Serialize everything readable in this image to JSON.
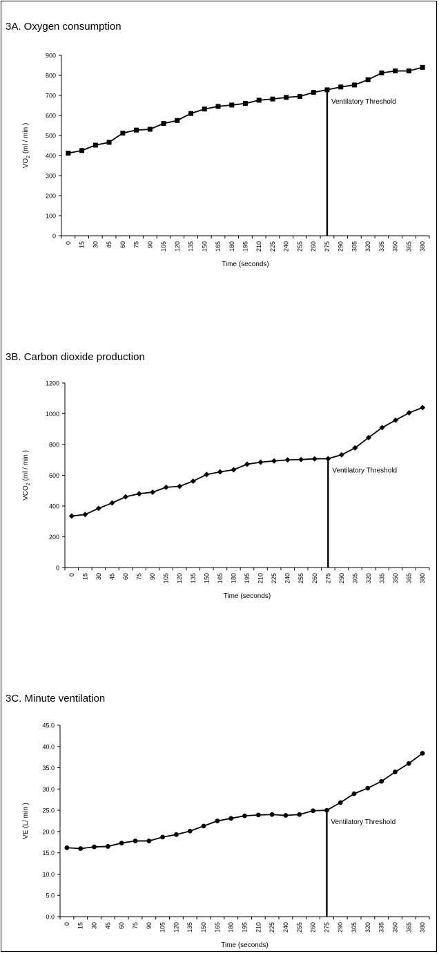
{
  "chart_data": [
    {
      "id": "3A",
      "type": "line",
      "title": "3A. Oxygen consumption",
      "xlabel": "Time (seconds)",
      "ylabel_main": "VO",
      "ylabel_sub": "2",
      "ylabel_tail": " (ml / min )",
      "categories": [
        "0",
        "15",
        "30",
        "45",
        "60",
        "75",
        "90",
        "105",
        "120",
        "135",
        "150",
        "165",
        "180",
        "195",
        "210",
        "225",
        "240",
        "255",
        "260",
        "275",
        "290",
        "305",
        "320",
        "335",
        "350",
        "365",
        "380"
      ],
      "series": [
        {
          "marker": "square",
          "values": [
            412,
            425,
            452,
            466,
            512,
            527,
            531,
            560,
            575,
            610,
            632,
            645,
            652,
            660,
            676,
            682,
            690,
            695,
            715,
            728,
            742,
            752,
            778,
            812,
            822,
            822,
            840
          ]
        }
      ],
      "ylim": [
        0,
        900
      ],
      "yticks": [
        0,
        100,
        200,
        300,
        400,
        500,
        600,
        700,
        800,
        900
      ],
      "ytick_labels": [
        "0",
        "100",
        "200",
        "300",
        "400",
        "500",
        "600",
        "700",
        "800",
        "900"
      ],
      "threshold": {
        "label": "Ventilatory Threshold",
        "category_index": 19
      },
      "grid": false
    },
    {
      "id": "3B",
      "type": "line",
      "title": "3B. Carbon dioxide production",
      "xlabel": "Time (seconds)",
      "ylabel_main": "VCO",
      "ylabel_sub": "2",
      "ylabel_tail": " (ml / min )",
      "categories": [
        "0",
        "15",
        "30",
        "45",
        "60",
        "75",
        "90",
        "105",
        "120",
        "135",
        "150",
        "165",
        "180",
        "195",
        "210",
        "225",
        "240",
        "255",
        "260",
        "275",
        "290",
        "305",
        "320",
        "335",
        "350",
        "365",
        "380"
      ],
      "series": [
        {
          "marker": "diamond",
          "values": [
            335,
            345,
            385,
            420,
            460,
            480,
            490,
            522,
            528,
            562,
            605,
            622,
            636,
            672,
            685,
            693,
            700,
            702,
            707,
            708,
            733,
            778,
            845,
            910,
            958,
            1006,
            1040
          ]
        }
      ],
      "ylim": [
        0,
        1200
      ],
      "yticks": [
        0,
        200,
        400,
        600,
        800,
        1000,
        1200
      ],
      "ytick_labels": [
        "0",
        "200",
        "400",
        "600",
        "800",
        "1000",
        "1200"
      ],
      "threshold": {
        "label": "Ventilatory Threshold",
        "category_index": 19
      },
      "grid": false
    },
    {
      "id": "3C",
      "type": "line",
      "title": "3C. Minute ventilation",
      "xlabel": "Time (seconds)",
      "ylabel_main": "VE (L/ min )",
      "ylabel_sub": "",
      "ylabel_tail": "",
      "categories": [
        "0",
        "15",
        "30",
        "45",
        "60",
        "75",
        "90",
        "105",
        "120",
        "135",
        "150",
        "165",
        "180",
        "195",
        "210",
        "225",
        "240",
        "255",
        "260",
        "275",
        "290",
        "305",
        "320",
        "335",
        "350",
        "365",
        "380"
      ],
      "series": [
        {
          "marker": "circle",
          "values": [
            16.2,
            16.0,
            16.4,
            16.5,
            17.3,
            17.8,
            17.8,
            18.7,
            19.3,
            20.1,
            21.3,
            22.5,
            23.1,
            23.7,
            23.9,
            24.0,
            23.8,
            24.0,
            24.9,
            25.0,
            26.8,
            28.9,
            30.2,
            31.8,
            34.0,
            36.0,
            38.4
          ]
        }
      ],
      "ylim": [
        0,
        45
      ],
      "yticks": [
        0,
        5,
        10,
        15,
        20,
        25,
        30,
        35,
        40,
        45
      ],
      "ytick_labels": [
        "0.0",
        "5.0",
        "10.0",
        "15.0",
        "20.0",
        "25.0",
        "30.0",
        "35.0",
        "40.0",
        "45.0"
      ],
      "threshold": {
        "label": "Ventilatory Threshold",
        "category_index": 19
      },
      "grid": false
    }
  ]
}
